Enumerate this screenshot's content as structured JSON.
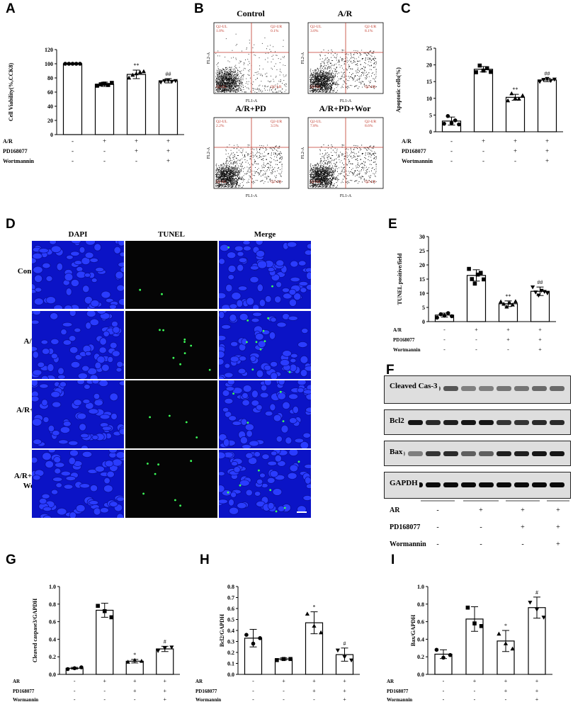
{
  "panels": {
    "A": {
      "label": "A",
      "ylabel": "Cell Viability(%,CCK8)",
      "yticks": [
        "0",
        "20",
        "40",
        "60",
        "80",
        "100",
        "120"
      ],
      "marks": [
        "",
        "",
        "**",
        "##"
      ],
      "rows": [
        {
          "name": "A/R",
          "signs": [
            "-",
            "+",
            "+",
            "+"
          ]
        },
        {
          "name": "PD168077",
          "signs": [
            "-",
            "-",
            "+",
            "+"
          ]
        },
        {
          "name": "Wortmannin",
          "signs": [
            "-",
            "-",
            "-",
            "+"
          ]
        }
      ]
    },
    "B": {
      "label": "B",
      "plots": [
        {
          "title": "Control",
          "ul": "Q2-UL",
          "ur": "Q2-UR",
          "ll": "Q2-LL",
          "lr": "Q2-LR",
          "ul_val": "1.0%",
          "ur_val": "0.1%"
        },
        {
          "title": "A/R",
          "ul": "Q2-UL",
          "ur": "Q2-UR",
          "ll": "Q2-LL",
          "lr": "Q2-LR",
          "ul_val": "3.0%",
          "ur_val": "8.1%"
        },
        {
          "title": "A/R+PD",
          "ul": "Q2-UL",
          "ur": "Q2-UR",
          "ll": "Q2-LL",
          "lr": "Q2-LR",
          "ul_val": "2.2%",
          "ur_val": "3.5%"
        },
        {
          "title": "A/R+PD+Wor",
          "ul": "Q2-UL",
          "ur": "Q2-UR",
          "ll": "Q2-LL",
          "lr": "Q2-LR",
          "ul_val": "7.8%",
          "ur_val": "8.6%"
        }
      ],
      "xaxis": "FL1-A",
      "yaxis": "FL2-A"
    },
    "C": {
      "label": "C",
      "ylabel": "Apoptotic cells(%)",
      "yticks": [
        "0",
        "5",
        "10",
        "15",
        "20",
        "25"
      ],
      "marks": [
        "",
        "",
        "**",
        "##"
      ],
      "rows": [
        {
          "name": "A/R",
          "signs": [
            "-",
            "+",
            "+",
            "+"
          ]
        },
        {
          "name": "PD168077",
          "signs": [
            "-",
            "-",
            "+",
            "+"
          ]
        },
        {
          "name": "Wortmannin",
          "signs": [
            "-",
            "-",
            "-",
            "+"
          ]
        }
      ]
    },
    "D": {
      "label": "D",
      "columns": [
        "DAPI",
        "TUNEL",
        "Merge"
      ],
      "rows": [
        "Control",
        "A/R",
        "A/R+PD",
        "A/R+PD+ Wor"
      ]
    },
    "E": {
      "label": "E",
      "ylabel": "TUNEL positive/field",
      "yticks": [
        "0",
        "5",
        "10",
        "15",
        "20",
        "25",
        "30"
      ],
      "marks": [
        "",
        "",
        "**",
        "##"
      ],
      "rows": [
        {
          "name": "A/R",
          "signs": [
            "-",
            "+",
            "+",
            "+"
          ]
        },
        {
          "name": "PD168077",
          "signs": [
            "-",
            "-",
            "+",
            "+"
          ]
        },
        {
          "name": "Wortmannin",
          "signs": [
            "-",
            "-",
            "-",
            "+"
          ]
        }
      ]
    },
    "F": {
      "label": "F",
      "blots": [
        "Cleaved Cas-3",
        "Bcl2",
        "Bax",
        "GAPDH"
      ],
      "rows": [
        {
          "name": "AR",
          "signs": [
            "-",
            "+",
            "+",
            "+"
          ]
        },
        {
          "name": "PD168077",
          "signs": [
            "-",
            "-",
            "+",
            "+"
          ]
        },
        {
          "name": "Wormannin",
          "signs": [
            "-",
            "-",
            "-",
            "+"
          ]
        }
      ]
    },
    "G": {
      "label": "G",
      "ylabel": "Cleaved caspase3/GAPDH",
      "yticks": [
        "0.0",
        "0.2",
        "0.4",
        "0.6",
        "0.8",
        "1.0"
      ],
      "marks": [
        "",
        "",
        "*",
        "#"
      ],
      "rows": [
        {
          "name": "AR",
          "signs": [
            "-",
            "+",
            "+",
            "+"
          ]
        },
        {
          "name": "PD168077",
          "signs": [
            "-",
            "-",
            "+",
            "+"
          ]
        },
        {
          "name": "Wormannin",
          "signs": [
            "-",
            "-",
            "-",
            "+"
          ]
        }
      ]
    },
    "H": {
      "label": "H",
      "ylabel": "Bcl2/GAPDH",
      "yticks": [
        "0.0",
        "0.1",
        "0.2",
        "0.3",
        "0.4",
        "0.5",
        "0.6",
        "0.7",
        "0.8"
      ],
      "marks": [
        "",
        "",
        "*",
        "#"
      ],
      "rows": [
        {
          "name": "AR",
          "signs": [
            "-",
            "+",
            "+",
            "+"
          ]
        },
        {
          "name": "PD168077",
          "signs": [
            "-",
            "-",
            "+",
            "+"
          ]
        },
        {
          "name": "Wormannin",
          "signs": [
            "-",
            "-",
            "-",
            "+"
          ]
        }
      ]
    },
    "I": {
      "label": "I",
      "ylabel": "Bax/GAPDH",
      "yticks": [
        "0.0",
        "0.2",
        "0.4",
        "0.6",
        "0.8",
        "1.0"
      ],
      "marks": [
        "",
        "",
        "*",
        "#"
      ],
      "rows": [
        {
          "name": "AR",
          "signs": [
            "-",
            "+",
            "+",
            "+"
          ]
        },
        {
          "name": "PD168077",
          "signs": [
            "-",
            "-",
            "+",
            "+"
          ]
        },
        {
          "name": "Wormannin",
          "signs": [
            "-",
            "-",
            "-",
            "+"
          ]
        }
      ]
    }
  },
  "chart_data": [
    {
      "id": "A",
      "type": "bar",
      "categories": [
        "1",
        "2",
        "3",
        "4"
      ],
      "values": [
        100,
        71,
        85,
        76
      ],
      "errors": [
        1,
        3,
        6,
        3
      ],
      "ylabel": "Cell Viability(%,CCK8)",
      "ylim": [
        0,
        120
      ],
      "points": [
        [
          100,
          100,
          100,
          100,
          100
        ],
        [
          69,
          71,
          72,
          70,
          73
        ],
        [
          80,
          84,
          86,
          88,
          89
        ],
        [
          74,
          76,
          77,
          75,
          76
        ]
      ],
      "markers": [
        "circle",
        "square",
        "triangle",
        "triangle-down"
      ]
    },
    {
      "id": "C",
      "type": "bar",
      "categories": [
        "1",
        "2",
        "3",
        "4"
      ],
      "values": [
        3.2,
        18.7,
        10.3,
        15.5
      ],
      "errors": [
        1.2,
        0.8,
        0.9,
        0.5
      ],
      "ylabel": "Apoptotic cells(%)",
      "ylim": [
        0,
        25
      ],
      "points": [
        [
          2.4,
          4.7,
          2.6,
          3.4,
          2.2
        ],
        [
          17.8,
          19.8,
          18.3,
          19.0,
          17.9
        ],
        [
          9.3,
          11.4,
          10.0,
          9.8,
          10.8
        ],
        [
          15.0,
          15.6,
          15.9,
          15.3,
          15.7
        ]
      ],
      "markers": [
        "circle",
        "square",
        "triangle",
        "triangle-down"
      ]
    },
    {
      "id": "E",
      "type": "bar",
      "categories": [
        "1",
        "2",
        "3",
        "4"
      ],
      "values": [
        2.3,
        16.3,
        6.3,
        10.7
      ],
      "errors": [
        0.7,
        2.0,
        1.0,
        1.5
      ],
      "ylabel": "TUNEL positive/field",
      "ylim": [
        0,
        30
      ],
      "points": [
        [
          1.4,
          2.6,
          2.1,
          3.0,
          1.9
        ],
        [
          18.6,
          15.0,
          13.4,
          16.6,
          17.2,
          14.9
        ],
        [
          7.0,
          6.2,
          5.2,
          6.6,
          5.9,
          7.1
        ],
        [
          12.2,
          10.4,
          9.3,
          11.0,
          10.6,
          10.1
        ]
      ],
      "markers": [
        "circle",
        "square",
        "triangle",
        "triangle-down"
      ]
    },
    {
      "id": "G",
      "type": "bar",
      "categories": [
        "1",
        "2",
        "3",
        "4"
      ],
      "values": [
        0.07,
        0.73,
        0.15,
        0.29
      ],
      "errors": [
        0.01,
        0.08,
        0.02,
        0.03
      ],
      "ylabel": "Cleaved caspase3/GAPDH",
      "ylim": [
        0,
        1.0
      ],
      "points": [
        [
          0.06,
          0.07,
          0.08
        ],
        [
          0.78,
          0.72,
          0.65
        ],
        [
          0.14,
          0.16,
          0.15
        ],
        [
          0.27,
          0.3,
          0.31
        ]
      ],
      "markers": [
        "circle",
        "square",
        "triangle",
        "triangle-down"
      ]
    },
    {
      "id": "H",
      "type": "bar",
      "categories": [
        "1",
        "2",
        "3",
        "4"
      ],
      "values": [
        0.33,
        0.14,
        0.47,
        0.18
      ],
      "errors": [
        0.08,
        0.01,
        0.1,
        0.06
      ],
      "ylabel": "Bcl2/GAPDH",
      "ylim": [
        0,
        0.8
      ],
      "points": [
        [
          0.36,
          0.28,
          0.33
        ],
        [
          0.13,
          0.14,
          0.14
        ],
        [
          0.55,
          0.44,
          0.38
        ],
        [
          0.22,
          0.16,
          0.13
        ]
      ],
      "markers": [
        "circle",
        "square",
        "triangle",
        "triangle-down"
      ]
    },
    {
      "id": "I",
      "type": "bar",
      "categories": [
        "1",
        "2",
        "3",
        "4"
      ],
      "values": [
        0.23,
        0.63,
        0.38,
        0.76
      ],
      "errors": [
        0.05,
        0.14,
        0.12,
        0.12
      ],
      "ylabel": "Bax/GAPDH",
      "ylim": [
        0,
        1.0
      ],
      "points": [
        [
          0.28,
          0.19,
          0.22
        ],
        [
          0.76,
          0.58,
          0.55
        ],
        [
          0.46,
          0.35,
          0.29
        ],
        [
          0.82,
          0.74,
          0.65
        ]
      ],
      "markers": [
        "circle",
        "square",
        "triangle",
        "triangle-down"
      ]
    }
  ]
}
